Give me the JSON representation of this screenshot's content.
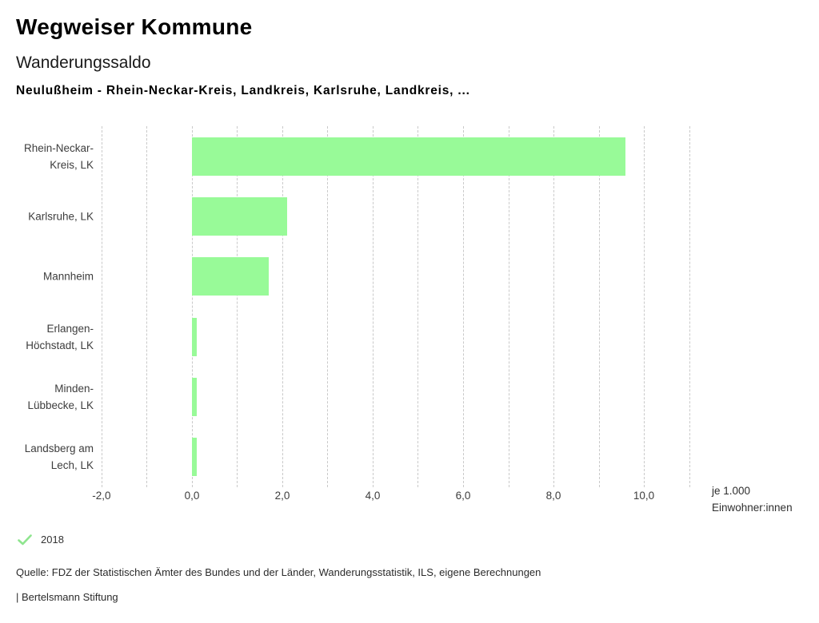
{
  "header": {
    "title": "Wegweiser Kommune",
    "subtitle": "Wanderungssaldo",
    "selection": "Neulußheim - Rhein-Neckar-Kreis, Landkreis, Karlsruhe, Landkreis, ..."
  },
  "chart_data": {
    "type": "bar",
    "orientation": "horizontal",
    "title": "Wanderungssaldo",
    "categories": [
      "Rhein-Neckar-Kreis, LK",
      "Karlsruhe, LK",
      "Mannheim",
      "Erlangen-Höchstadt, LK",
      "Minden-Lübbecke, LK",
      "Landsberg am Lech, LK"
    ],
    "category_label_lines": [
      [
        "Rhein-Neckar-",
        "Kreis, LK"
      ],
      [
        "Karlsruhe, LK"
      ],
      [
        "Mannheim"
      ],
      [
        "Erlangen-",
        "Höchstadt, LK"
      ],
      [
        "Minden-",
        "Lübbecke, LK"
      ],
      [
        "Landsberg am",
        "Lech, LK"
      ]
    ],
    "series": [
      {
        "name": "2018",
        "values": [
          9.6,
          2.1,
          1.7,
          0.1,
          0.1,
          0.1
        ]
      }
    ],
    "xlabel": "je 1.000 Einwohner:innen",
    "xlabel_lines": [
      "je 1.000",
      "Einwohner:innen"
    ],
    "xlim": [
      -2.3,
      11.15
    ],
    "x_ticks": [
      {
        "value": -2,
        "label": "-2,0"
      },
      {
        "value": 0,
        "label": "0,0"
      },
      {
        "value": 2,
        "label": "2,0"
      },
      {
        "value": 4,
        "label": "4,0"
      },
      {
        "value": 6,
        "label": "6,0"
      },
      {
        "value": 8,
        "label": "8,0"
      },
      {
        "value": 10,
        "label": "10,0"
      }
    ],
    "gridlines": {
      "min": -2,
      "max": 11,
      "step": 1,
      "style": "dashed"
    },
    "bar_color": "#98fa98",
    "gridline_color": "#c9c9c9",
    "legend_position": "bottom-left"
  },
  "legend": {
    "items": [
      {
        "label": "2018",
        "icon": "check-icon",
        "color": "#8fe58f"
      }
    ]
  },
  "footer": {
    "source": "Quelle: FDZ der Statistischen Ämter des Bundes und der Länder, Wanderungsstatistik, ILS, eigene Berechnungen",
    "branding": "| Bertelsmann Stiftung"
  }
}
